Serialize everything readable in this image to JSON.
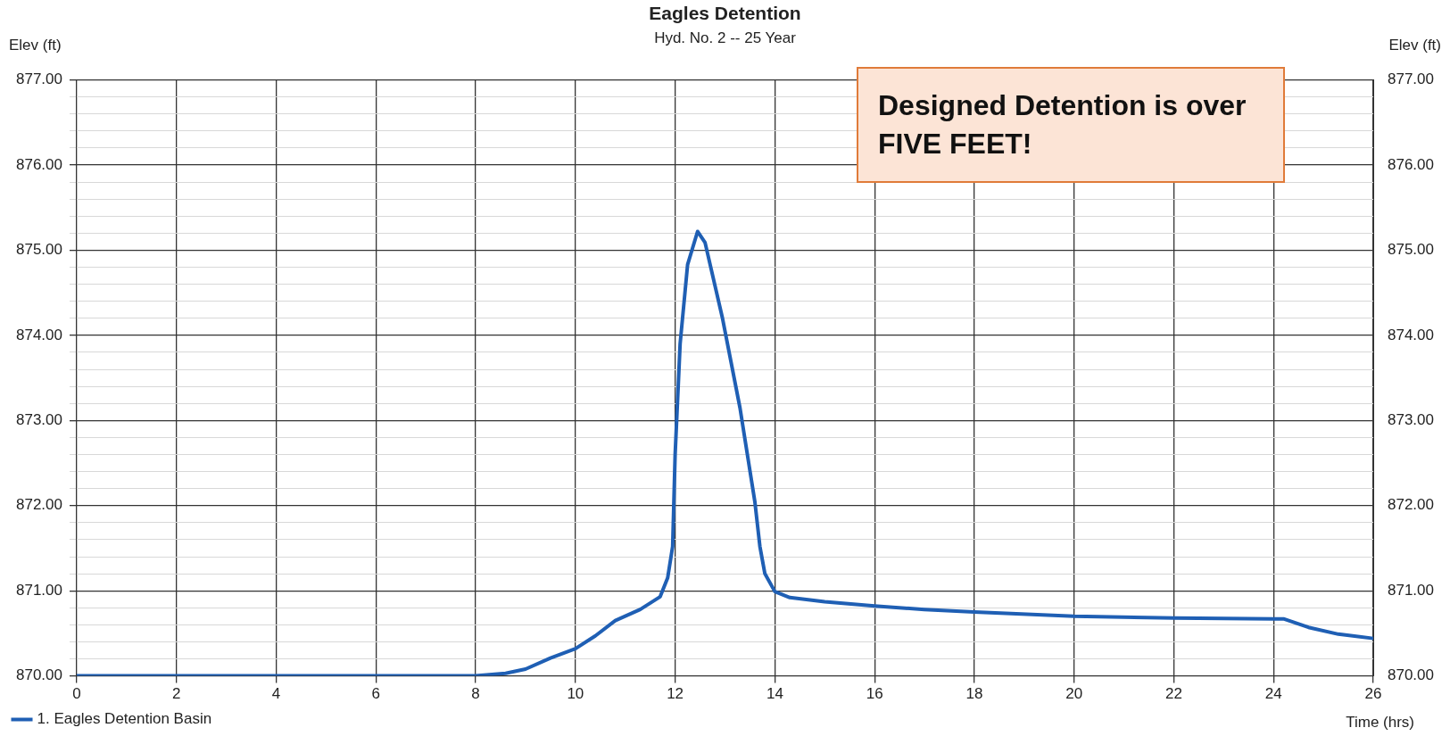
{
  "chart_data": {
    "type": "line",
    "title": "Eagles Detention",
    "subtitle": "Hyd. No. 2 -- 25 Year",
    "xlabel": "Time (hrs)",
    "ylabel": "Elev (ft)",
    "y2label": "Elev (ft)",
    "annotations": [
      "Designed Detention is over FIVE FEET!"
    ],
    "x": [
      0,
      2,
      4,
      6,
      8,
      8.6,
      9.0,
      9.5,
      10.0,
      10.4,
      10.8,
      11.3,
      11.7,
      11.85,
      11.95,
      12.0,
      12.1,
      12.25,
      12.45,
      12.6,
      12.95,
      13.3,
      13.6,
      13.7,
      13.8,
      14.0,
      14.3,
      15,
      16,
      17,
      18,
      20,
      22,
      24,
      24.2,
      24.7,
      25.3,
      26
    ],
    "series": [
      {
        "name": "1. Eagles Detention Basin",
        "color": "#1f5fb4",
        "values": [
          870.0,
          870.0,
          870.0,
          870.0,
          870.0,
          870.03,
          870.08,
          870.21,
          870.32,
          870.47,
          870.65,
          870.78,
          870.93,
          871.15,
          871.52,
          872.6,
          873.9,
          874.83,
          875.22,
          875.09,
          874.2,
          873.15,
          872.04,
          871.52,
          871.2,
          870.99,
          870.92,
          870.87,
          870.82,
          870.78,
          870.75,
          870.7,
          870.68,
          870.67,
          870.67,
          870.57,
          870.49,
          870.44
        ]
      }
    ],
    "xlim": [
      0,
      26
    ],
    "xticks": [
      0,
      2,
      4,
      6,
      8,
      10,
      12,
      14,
      16,
      18,
      20,
      22,
      24,
      26
    ],
    "ylim": [
      870,
      877
    ],
    "yticks": [
      {
        "value": 870,
        "label": "870.00"
      },
      {
        "value": 870.2,
        "label": null
      },
      {
        "value": 870.4,
        "label": null
      },
      {
        "value": 870.6,
        "label": null
      },
      {
        "value": 870.8,
        "label": null
      },
      {
        "value": 871,
        "label": "871.00"
      },
      {
        "value": 871.2,
        "label": null
      },
      {
        "value": 871.4,
        "label": null
      },
      {
        "value": 871.6,
        "label": null
      },
      {
        "value": 871.8,
        "label": null
      },
      {
        "value": 872,
        "label": "872.00"
      },
      {
        "value": 872.2,
        "label": null
      },
      {
        "value": 872.4,
        "label": null
      },
      {
        "value": 872.6,
        "label": null
      },
      {
        "value": 872.8,
        "label": null
      },
      {
        "value": 873,
        "label": "873.00"
      },
      {
        "value": 873.2,
        "label": null
      },
      {
        "value": 873.4,
        "label": null
      },
      {
        "value": 873.6,
        "label": null
      },
      {
        "value": 873.8,
        "label": null
      },
      {
        "value": 874,
        "label": "874.00"
      },
      {
        "value": 874.2,
        "label": null
      },
      {
        "value": 874.4,
        "label": null
      },
      {
        "value": 874.6,
        "label": null
      },
      {
        "value": 874.8,
        "label": null
      },
      {
        "value": 875,
        "label": "875.00"
      },
      {
        "value": 875.2,
        "label": null
      },
      {
        "value": 875.4,
        "label": null
      },
      {
        "value": 875.6,
        "label": null
      },
      {
        "value": 875.8,
        "label": null
      },
      {
        "value": 876,
        "label": "876.00"
      },
      {
        "value": 876.2,
        "label": null
      },
      {
        "value": 876.4,
        "label": null
      },
      {
        "value": 876.6,
        "label": null
      },
      {
        "value": 876.8,
        "label": null
      },
      {
        "value": 877,
        "label": "877.00"
      }
    ],
    "y2lim": [
      870,
      877
    ],
    "y2ticks": [
      {
        "value": 870,
        "label": "870.00"
      },
      {
        "value": 871,
        "label": "871.00"
      },
      {
        "value": 872,
        "label": "872.00"
      },
      {
        "value": 873,
        "label": "873.00"
      },
      {
        "value": 874,
        "label": "874.00"
      },
      {
        "value": 875,
        "label": "875.00"
      },
      {
        "value": 876,
        "label": "876.00"
      },
      {
        "value": 877,
        "label": "877.00"
      }
    ],
    "grid": true,
    "legend": "bottom left",
    "marker": "none",
    "line_style": "solid"
  }
}
